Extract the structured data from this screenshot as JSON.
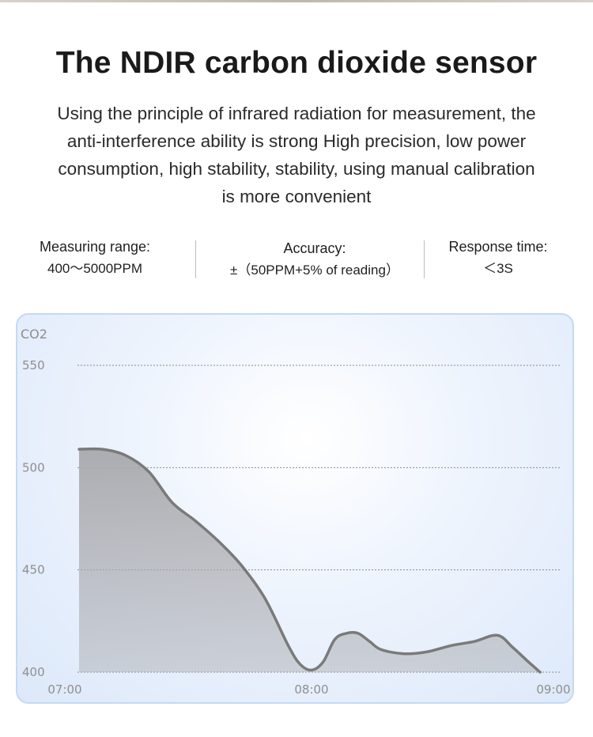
{
  "title": "The NDIR carbon dioxide sensor",
  "description_lines": [
    "Using the principle of infrared radiation for measurement, the",
    "anti-interference ability is strong High precision, low power",
    "consumption, high stability, stability, using manual calibration",
    "is more convenient"
  ],
  "specs": {
    "measuring_range": {
      "label": "Measuring range:",
      "value": "400～5000PPM"
    },
    "accuracy": {
      "label": "Accuracy:",
      "value": "±（50PPM+5% of reading）"
    },
    "response_time": {
      "label": "Response time:",
      "value": "＜3S"
    }
  },
  "colors": {
    "line": "#7a7a7a",
    "area": "#a8a9ad",
    "grid": "#8a8a8a",
    "panel_border": "#c5d9f3"
  },
  "chart_data": {
    "type": "area",
    "ylabel": "CO2",
    "xlabel": "",
    "y_ticks": [
      400,
      450,
      500,
      550
    ],
    "x_ticks": [
      "07:00",
      "08:00",
      "09:00"
    ],
    "ylim": [
      400,
      550
    ],
    "xlim": [
      "07:00",
      "09:00"
    ],
    "grid": true,
    "legend": "none",
    "series": [
      {
        "x": [
          "07:00",
          "07:06",
          "07:12",
          "07:18",
          "07:24",
          "07:30",
          "07:36",
          "07:42",
          "07:48",
          "07:54",
          "07:57",
          "08:00",
          "08:03",
          "08:06",
          "08:09",
          "08:12",
          "08:15",
          "08:18",
          "08:24",
          "08:30",
          "08:36",
          "08:42",
          "08:48",
          "08:52",
          "08:56",
          "08:59"
        ],
        "values": [
          509,
          509,
          506,
          498,
          483,
          474,
          464,
          452,
          436,
          413,
          404,
          401,
          405,
          416,
          419,
          419,
          415,
          411,
          409,
          410,
          413,
          415,
          418,
          412,
          405,
          400
        ]
      }
    ]
  }
}
